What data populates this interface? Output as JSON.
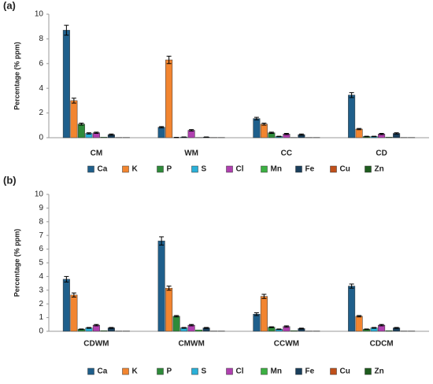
{
  "chart_data": [
    {
      "type": "bar",
      "panel": "(a)",
      "ylabel": "Percentage (% ppm)",
      "categories": [
        "CM",
        "WM",
        "CC",
        "CD"
      ],
      "ylim": [
        0,
        10
      ],
      "yticks": [
        0,
        2,
        4,
        6,
        8,
        10
      ],
      "legend": "bottom",
      "series": [
        {
          "name": "Ca",
          "color": "#1f5f8b",
          "values": [
            8.7,
            0.85,
            1.55,
            3.45
          ],
          "errors": [
            0.4,
            0.05,
            0.1,
            0.2
          ]
        },
        {
          "name": "K",
          "color": "#f28530",
          "values": [
            3.0,
            6.3,
            1.1,
            0.7
          ],
          "errors": [
            0.2,
            0.3,
            0.08,
            0.05
          ]
        },
        {
          "name": "P",
          "color": "#2e8b3a",
          "values": [
            1.1,
            0.02,
            0.4,
            0.1
          ],
          "errors": [
            0.08,
            0.01,
            0.05,
            0.02
          ]
        },
        {
          "name": "S",
          "color": "#2ab0d8",
          "values": [
            0.35,
            0.05,
            0.1,
            0.1
          ],
          "errors": [
            0.05,
            0.01,
            0.02,
            0.02
          ]
        },
        {
          "name": "Cl",
          "color": "#b040b0",
          "values": [
            0.4,
            0.6,
            0.3,
            0.3
          ],
          "errors": [
            0.05,
            0.06,
            0.05,
            0.05
          ]
        },
        {
          "name": "Mn",
          "color": "#3cb043",
          "values": [
            0.05,
            0.02,
            0.02,
            0.05
          ]
        },
        {
          "name": "Fe",
          "color": "#1a3f5c",
          "values": [
            0.25,
            0.05,
            0.25,
            0.35
          ],
          "errors": [
            0.05,
            0.01,
            0.05,
            0.05
          ]
        },
        {
          "name": "Cu",
          "color": "#c0501a",
          "values": [
            0.02,
            0.02,
            0.02,
            0.02
          ]
        },
        {
          "name": "Zn",
          "color": "#1e5c1e",
          "values": [
            0.02,
            0.02,
            0.02,
            0.02
          ]
        }
      ]
    },
    {
      "type": "bar",
      "panel": "(b)",
      "ylabel": "Percentage (% ppm)",
      "categories": [
        "CDWM",
        "CMWM",
        "CCWM",
        "CDCM"
      ],
      "ylim": [
        0,
        10
      ],
      "yticks": [
        0,
        1,
        2,
        3,
        4,
        5,
        6,
        7,
        8,
        9,
        10
      ],
      "legend": "bottom",
      "series": [
        {
          "name": "Ca",
          "color": "#1f5f8b",
          "values": [
            3.8,
            6.6,
            1.25,
            3.3
          ],
          "errors": [
            0.2,
            0.3,
            0.1,
            0.15
          ]
        },
        {
          "name": "K",
          "color": "#f28530",
          "values": [
            2.65,
            3.15,
            2.55,
            1.1
          ],
          "errors": [
            0.15,
            0.15,
            0.15,
            0.05
          ]
        },
        {
          "name": "P",
          "color": "#2e8b3a",
          "values": [
            0.15,
            1.1,
            0.3,
            0.15
          ],
          "errors": [
            0.02,
            0.05,
            0.03,
            0.02
          ]
        },
        {
          "name": "S",
          "color": "#2ab0d8",
          "values": [
            0.25,
            0.25,
            0.15,
            0.25
          ],
          "errors": [
            0.03,
            0.03,
            0.02,
            0.03
          ]
        },
        {
          "name": "Cl",
          "color": "#b040b0",
          "values": [
            0.45,
            0.45,
            0.35,
            0.45
          ],
          "errors": [
            0.05,
            0.05,
            0.05,
            0.05
          ]
        },
        {
          "name": "Mn",
          "color": "#3cb043",
          "values": [
            0.05,
            0.1,
            0.05,
            0.05
          ]
        },
        {
          "name": "Fe",
          "color": "#1a3f5c",
          "values": [
            0.25,
            0.25,
            0.2,
            0.25
          ],
          "errors": [
            0.03,
            0.03,
            0.03,
            0.03
          ]
        },
        {
          "name": "Cu",
          "color": "#c0501a",
          "values": [
            0.02,
            0.02,
            0.02,
            0.02
          ]
        },
        {
          "name": "Zn",
          "color": "#1e5c1e",
          "values": [
            0.02,
            0.02,
            0.02,
            0.02
          ]
        }
      ]
    }
  ]
}
